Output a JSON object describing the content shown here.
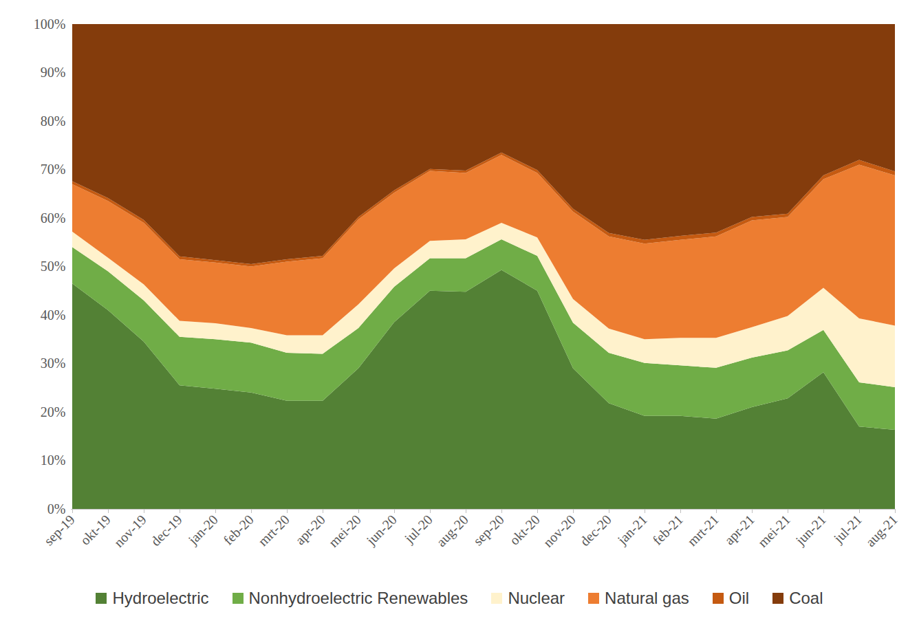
{
  "chart_data": {
    "type": "area",
    "stacked": true,
    "legend": "bottom",
    "grid": false,
    "categories": [
      "sep-19",
      "okt-19",
      "nov-19",
      "dec-19",
      "jan-20",
      "feb-20",
      "mrt-20",
      "apr-20",
      "mei-20",
      "jun-20",
      "jul-20",
      "aug-20",
      "sep-20",
      "okt-20",
      "nov-20",
      "dec-20",
      "jan-21",
      "feb-21",
      "mrt-21",
      "apr-21",
      "mei-21",
      "jun-21",
      "jul-21",
      "aug-21"
    ],
    "ylim": [
      0,
      100
    ],
    "yticks": [
      {
        "value": 0,
        "label": "0%"
      },
      {
        "value": 10,
        "label": "10%"
      },
      {
        "value": 20,
        "label": "20%"
      },
      {
        "value": 30,
        "label": "30%"
      },
      {
        "value": 40,
        "label": "40%"
      },
      {
        "value": 50,
        "label": "50%"
      },
      {
        "value": 60,
        "label": "60%"
      },
      {
        "value": 70,
        "label": "70%"
      },
      {
        "value": 80,
        "label": "80%"
      },
      {
        "value": 90,
        "label": "90%"
      },
      {
        "value": 100,
        "label": "100%"
      }
    ],
    "series": [
      {
        "name": "Hydroelectric",
        "color": "#538135",
        "values": [
          46.5,
          41,
          34.5,
          25.5,
          24.8,
          24,
          22.3,
          22.3,
          29,
          38.5,
          45,
          44.8,
          49.3,
          45,
          29,
          21.8,
          19.2,
          19.2,
          18.6,
          21,
          22.8,
          28.2,
          17,
          16.3
        ]
      },
      {
        "name": "Nonhydroelectric Renewables",
        "color": "#70ad47",
        "values": [
          7.5,
          8,
          8.5,
          10,
          10.2,
          10.3,
          9.9,
          9.7,
          8.3,
          7.3,
          6.7,
          6.9,
          6.3,
          7.2,
          9.4,
          10.4,
          10.9,
          10.4,
          10.5,
          10.2,
          9.9,
          8.7,
          9.1,
          8.8
        ]
      },
      {
        "name": "Nuclear",
        "color": "#fff2cc",
        "values": [
          3.2,
          2.8,
          3.3,
          3.3,
          3.3,
          3.0,
          3.6,
          3.8,
          4.9,
          3.8,
          3.6,
          3.9,
          3.4,
          3.8,
          4.9,
          5.0,
          4.9,
          5.7,
          6.2,
          6.3,
          7.1,
          8.7,
          13.2,
          12.7
        ]
      },
      {
        "name": "Natural gas",
        "color": "#ed7d31",
        "values": [
          9.8,
          11.7,
          12.7,
          12.7,
          12.5,
          12.7,
          15.2,
          15.9,
          17.5,
          15.6,
          14.4,
          13.7,
          14,
          13.3,
          18,
          19,
          19.7,
          20.2,
          20.9,
          22,
          20.4,
          22.4,
          31.7,
          31
        ]
      },
      {
        "name": "Oil",
        "color": "#c55a11",
        "values": [
          0.6,
          0.6,
          0.6,
          0.6,
          0.5,
          0.5,
          0.5,
          0.5,
          0.5,
          0.5,
          0.4,
          0.5,
          0.5,
          0.6,
          0.6,
          0.7,
          0.8,
          0.8,
          0.8,
          0.7,
          0.7,
          0.8,
          1.0,
          0.8
        ]
      },
      {
        "name": "Coal",
        "color": "#843c0c",
        "values": [
          32.4,
          35.9,
          40.4,
          47.9,
          48.7,
          49.5,
          48.5,
          47.8,
          39.8,
          34.3,
          29.9,
          30.2,
          26.5,
          30.1,
          38.1,
          43.1,
          44.5,
          43.7,
          43,
          39.8,
          39.1,
          31.2,
          28,
          30.4
        ]
      }
    ]
  }
}
